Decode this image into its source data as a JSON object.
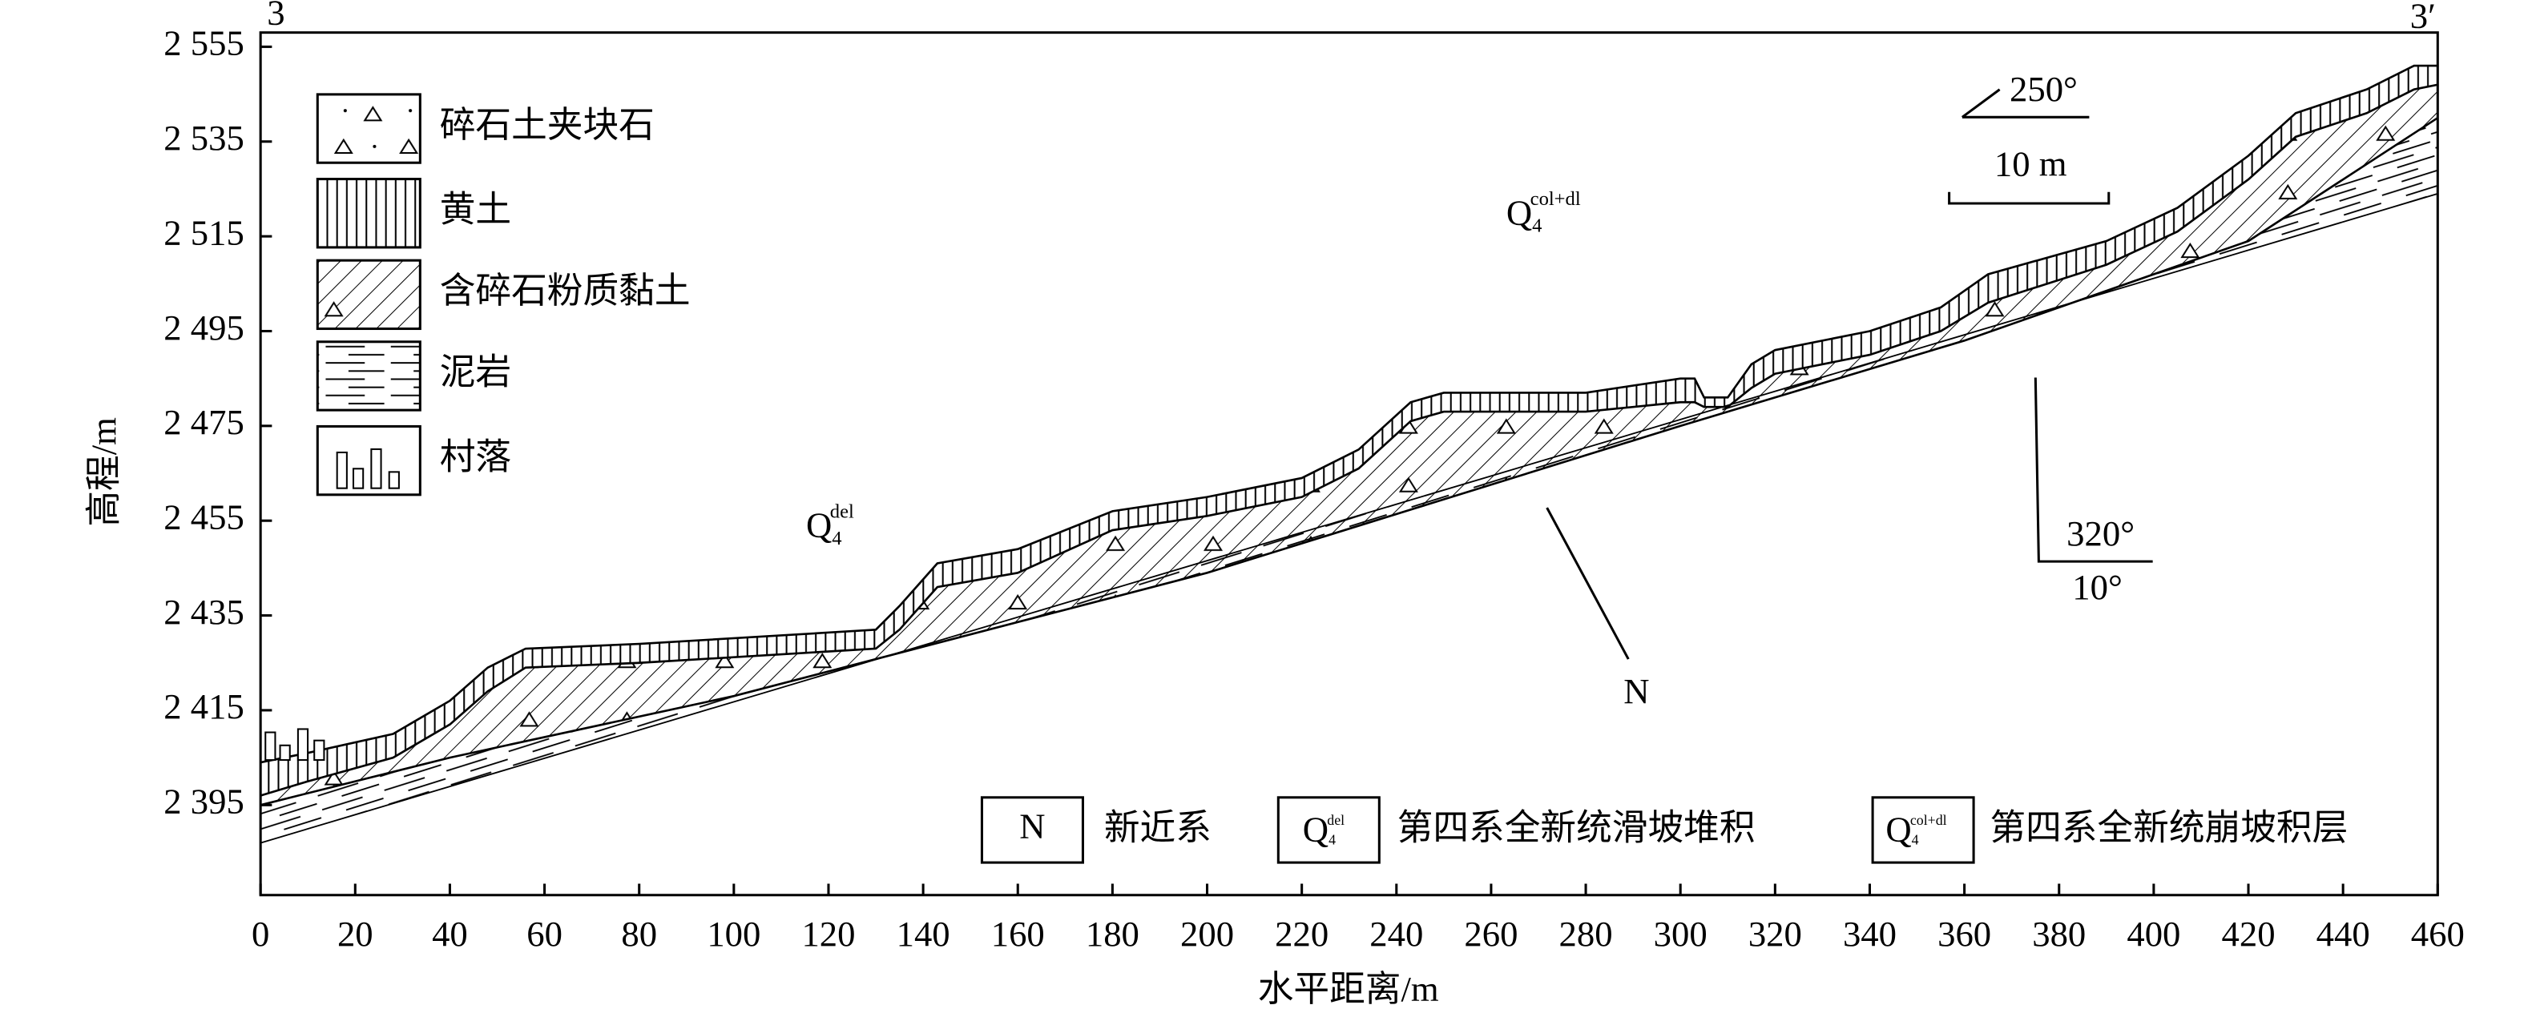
{
  "chart_data": {
    "type": "profile",
    "xlabel": "水平距离/m",
    "ylabel": "高程/m",
    "xlim": [
      0,
      460
    ],
    "ylim": [
      2376,
      2558
    ],
    "xticks": [
      0,
      20,
      40,
      60,
      80,
      100,
      120,
      140,
      160,
      180,
      200,
      220,
      240,
      260,
      280,
      300,
      320,
      340,
      360,
      380,
      400,
      420,
      440,
      460
    ],
    "yticks": [
      {
        "value": 2395,
        "label": "2 395"
      },
      {
        "value": 2415,
        "label": "2 415"
      },
      {
        "value": 2435,
        "label": "2 435"
      },
      {
        "value": 2455,
        "label": "2 455"
      },
      {
        "value": 2475,
        "label": "2 475"
      },
      {
        "value": 2495,
        "label": "2 495"
      },
      {
        "value": 2515,
        "label": "2 515"
      },
      {
        "value": 2535,
        "label": "2 535"
      },
      {
        "value": 2555,
        "label": "2 555"
      }
    ],
    "surfaces": [
      {
        "x": [
          0,
          10,
          28,
          40,
          48,
          56,
          80,
          130,
          135,
          143,
          160,
          180,
          200,
          220,
          232,
          243,
          250,
          280,
          300,
          303,
          305,
          310,
          315,
          320,
          340,
          355,
          365,
          390,
          405,
          420,
          430,
          445,
          455,
          460
        ],
        "values": [
          2404,
          2406,
          2410,
          2417,
          2424,
          2428,
          2429,
          2432,
          2437,
          2446,
          2449,
          2457,
          2460,
          2464,
          2470,
          2480,
          2482,
          2482,
          2485,
          2485,
          2481,
          2481,
          2488,
          2491,
          2495,
          2500,
          2507,
          2514,
          2521,
          2532,
          2541,
          2546,
          2551,
          2551
        ]
      },
      {
        "x": [
          0,
          10,
          28,
          40,
          48,
          56,
          80,
          130,
          135,
          143,
          160,
          180,
          200,
          220,
          232,
          243,
          250,
          280,
          300,
          303,
          305,
          310,
          315,
          320,
          340,
          355,
          365,
          390,
          405,
          420,
          430,
          445,
          455,
          460
        ],
        "values": [
          2397,
          2400,
          2405,
          2412,
          2419,
          2424,
          2425,
          2428,
          2432,
          2441,
          2444,
          2453,
          2456,
          2460,
          2466,
          2476,
          2478,
          2478,
          2480,
          2480,
          2479,
          2479,
          2483,
          2486,
          2490,
          2495,
          2501,
          2509,
          2516,
          2527,
          2536,
          2541,
          2546,
          2547
        ]
      },
      {
        "x": [
          0,
          40,
          100,
          200,
          300,
          360,
          420,
          460
        ],
        "values": [
          2395,
          2405,
          2418,
          2444,
          2475,
          2493,
          2514,
          2540
        ]
      },
      {
        "x": [
          0,
          460
        ],
        "values": [
          2387,
          2524
        ]
      }
    ],
    "section_start": "3",
    "section_end": "3′",
    "strike": "250°",
    "scale": "10 m",
    "dip_direction": "320°",
    "dip_angle": "10°",
    "bedrock_label": "N",
    "q_del": {
      "base": "Q",
      "sub": "4",
      "sup": "del"
    },
    "q_col": {
      "base": "Q",
      "sub": "4",
      "sup": "col+dl"
    },
    "legend": [
      "碎石土夹块石",
      "黄土",
      "含碎石粉质黏土",
      "泥岩",
      "村落"
    ],
    "unit_legend": [
      {
        "symbol": "N",
        "label": "新近系"
      },
      {
        "symbol": {
          "base": "Q",
          "sub": "4",
          "sup": "del"
        },
        "label": "第四系全新统滑坡堆积"
      },
      {
        "symbol": {
          "base": "Q",
          "sub": "4",
          "sup": "col+dl"
        },
        "label": "第四系全新统崩坡积层"
      }
    ]
  }
}
